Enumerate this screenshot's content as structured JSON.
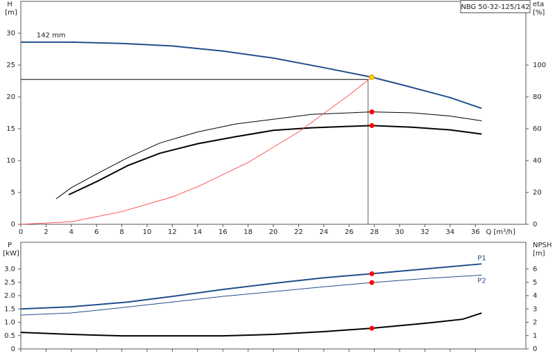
{
  "chart_data": [
    {
      "type": "line",
      "title": "NBG 50-32-125/142",
      "ylabel": "H",
      "yunit": "[m]",
      "y2label": "eta",
      "y2unit": "[%]",
      "xlabel": "Q [m³/h]",
      "xlim": [
        0,
        40
      ],
      "xticks": [
        0,
        2,
        4,
        6,
        8,
        10,
        12,
        14,
        16,
        18,
        20,
        22,
        24,
        26,
        28,
        30,
        32,
        34,
        36
      ],
      "ylim": [
        0,
        35
      ],
      "yticks": [
        0,
        5,
        10,
        15,
        20,
        25,
        30
      ],
      "y2lim": [
        0,
        140
      ],
      "y2ticks": [
        0,
        20,
        40,
        60,
        80,
        100
      ],
      "label_position": "start",
      "series": [
        {
          "name": "142 mm",
          "color": "#1f4e8c",
          "linewidth": 2,
          "x": [
            0,
            4,
            8,
            12,
            16,
            20,
            24,
            27.8,
            30,
            34,
            36.5
          ],
          "values": [
            28.6,
            28.6,
            28.4,
            28.0,
            27.2,
            26.1,
            24.6,
            23.1,
            22.0,
            19.9,
            18.2
          ]
        },
        {
          "color": "#000000",
          "linewidth": 1,
          "axis": "y2",
          "x": [
            2.8,
            4,
            6,
            8.5,
            11,
            14,
            17,
            20,
            23,
            26,
            27.8,
            31,
            34,
            36.5
          ],
          "values": [
            16,
            23,
            31.6,
            42,
            51,
            58,
            63,
            66,
            69,
            70,
            70.6,
            70,
            68,
            65
          ]
        },
        {
          "color": "#000000",
          "linewidth": 2,
          "axis": "y2",
          "x": [
            3.8,
            6,
            8.5,
            11,
            14,
            17,
            20,
            23,
            26,
            27.8,
            31,
            34,
            36.5
          ],
          "values": [
            18.6,
            26.8,
            37,
            44.6,
            50.6,
            55,
            59,
            60.6,
            61.5,
            62,
            61,
            59.3,
            56.7
          ]
        },
        {
          "color": "#ff3030",
          "linewidth": 0.8,
          "x": [
            0,
            4,
            8,
            12,
            14,
            18,
            22,
            26,
            27.8
          ],
          "values": [
            0,
            0.4,
            2,
            4.3,
            5.9,
            9.7,
            14.5,
            20.3,
            23.1
          ]
        }
      ],
      "duty_point": {
        "x": 27.5,
        "y": 22.75
      },
      "markers": [
        {
          "x": 27.8,
          "y": 23.1,
          "color": "#ffd000"
        },
        {
          "x": 27.8,
          "y": 70.6,
          "color": "#ff0000",
          "axis": "y2"
        },
        {
          "x": 27.8,
          "y": 62,
          "color": "#ff0000",
          "axis": "y2"
        }
      ]
    },
    {
      "type": "line",
      "ylabel": "P",
      "yunit": "[kW]",
      "y2label": "NPSH",
      "y2unit": "[m]",
      "xlim": [
        0,
        40
      ],
      "xticks": [
        0,
        2,
        4,
        6,
        8,
        10,
        12,
        14,
        16,
        18,
        20,
        22,
        24,
        26,
        28,
        30,
        32,
        34,
        36
      ],
      "ylim": [
        0,
        4
      ],
      "yticks": [
        0,
        {
          "value": 0.5,
          "label": "0.5"
        },
        {
          "value": 1,
          "label": "1.0"
        },
        {
          "value": 1.5,
          "label": "1.5"
        },
        {
          "value": 2,
          "label": "2.0"
        },
        {
          "value": 2.5,
          "label": "2.5"
        },
        {
          "value": 3,
          "label": "3.0"
        }
      ],
      "y2lim": [
        0,
        8
      ],
      "y2ticks": [
        0,
        1,
        2,
        3,
        4,
        5,
        6
      ],
      "label_position": "end",
      "series": [
        {
          "name": "P1",
          "color": "#1f4e8c",
          "linewidth": 2,
          "x": [
            0,
            4,
            8.5,
            12,
            16,
            20,
            24,
            27.8,
            32,
            36.5
          ],
          "values": [
            1.5,
            1.58,
            1.76,
            1.97,
            2.23,
            2.46,
            2.67,
            2.82,
            3.0,
            3.19
          ]
        },
        {
          "name": "P2",
          "color": "#1f4e8c",
          "linewidth": 1,
          "x": [
            0,
            4,
            8,
            12,
            16,
            20,
            24,
            27.8,
            32,
            36.5
          ],
          "values": [
            1.27,
            1.35,
            1.55,
            1.76,
            1.97,
            2.15,
            2.33,
            2.49,
            2.64,
            2.77
          ]
        },
        {
          "color": "#000000",
          "linewidth": 2,
          "axis": "y2",
          "x": [
            0,
            4,
            8,
            12,
            16,
            20,
            24,
            27.8,
            32,
            35,
            36.5
          ],
          "values": [
            1.24,
            1.09,
            0.98,
            0.98,
            0.98,
            1.09,
            1.3,
            1.55,
            1.92,
            2.23,
            2.69
          ]
        }
      ],
      "markers": [
        {
          "x": 27.8,
          "y": 2.82,
          "color": "#ff0000"
        },
        {
          "x": 27.8,
          "y": 2.49,
          "color": "#ff0000"
        },
        {
          "x": 27.8,
          "y": 1.55,
          "color": "#ff0000",
          "axis": "y2"
        }
      ]
    }
  ]
}
